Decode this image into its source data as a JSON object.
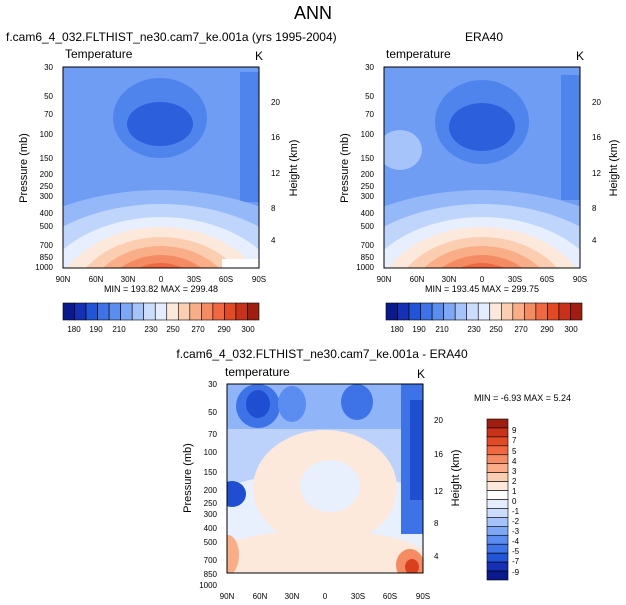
{
  "figure_title": "ANN",
  "colors": {
    "cool": [
      "#0a1a8c",
      "#1530b5",
      "#2255d6",
      "#3d73e6",
      "#5b8cf0",
      "#7ea8f6",
      "#a6c4fa",
      "#cbdcfc",
      "#e4edfd"
    ],
    "warm": [
      "#fde9dc",
      "#fbcdb1",
      "#f9ae88",
      "#f58b63",
      "#ef6841",
      "#e24a26",
      "#c8321a",
      "#9e1f10"
    ],
    "zero": "#ffffff"
  },
  "chart_data": [
    {
      "type": "contour",
      "panel_title": "f.cam6_4_032.FLTHIST_ne30.cam7_ke.001a (yrs 1995-2004)",
      "left_label": "Temperature",
      "right_label": "K",
      "ylabel": "Pressure (mb)",
      "ylabel_right": "Height (km)",
      "x_ticks": [
        "90N",
        "60N",
        "30N",
        "0",
        "30S",
        "60S",
        "90S"
      ],
      "y_ticks": [
        "30",
        "50",
        "70",
        "100",
        "150",
        "200",
        "250",
        "300",
        "400",
        "500",
        "700",
        "850",
        "1000"
      ],
      "height_ticks": [
        "20",
        "16",
        "12",
        "8",
        "4"
      ],
      "stats": "MIN = 193.82  MAX = 299.48",
      "min": 193.82,
      "max": 299.48,
      "colorbar": {
        "orientation": "horizontal",
        "labels": [
          "180",
          "190",
          "210",
          "230",
          "250",
          "270",
          "290",
          "300"
        ]
      }
    },
    {
      "type": "contour",
      "panel_title": "ERA40",
      "left_label": "temperature",
      "right_label": "K",
      "ylabel": "Pressure (mb)",
      "ylabel_right": "Height (km)",
      "x_ticks": [
        "90N",
        "60N",
        "30N",
        "0",
        "30S",
        "60S",
        "90S"
      ],
      "y_ticks": [
        "30",
        "50",
        "70",
        "100",
        "150",
        "200",
        "250",
        "300",
        "400",
        "500",
        "700",
        "850",
        "1000"
      ],
      "height_ticks": [
        "20",
        "16",
        "12",
        "8",
        "4"
      ],
      "stats": "MIN = 193.45  MAX = 299.75",
      "min": 193.45,
      "max": 299.75,
      "colorbar": {
        "orientation": "horizontal",
        "labels": [
          "180",
          "190",
          "210",
          "230",
          "250",
          "270",
          "290",
          "300"
        ]
      }
    },
    {
      "type": "contour",
      "panel_title": "f.cam6_4_032.FLTHIST_ne30.cam7_ke.001a - ERA40",
      "left_label": "temperature",
      "right_label": "K",
      "ylabel": "Pressure (mb)",
      "ylabel_right": "Height (km)",
      "x_ticks": [
        "90N",
        "60N",
        "30N",
        "0",
        "30S",
        "60S",
        "90S"
      ],
      "y_ticks": [
        "30",
        "50",
        "70",
        "100",
        "150",
        "200",
        "250",
        "300",
        "400",
        "500",
        "700",
        "850",
        "1000"
      ],
      "height_ticks": [
        "20",
        "16",
        "12",
        "8",
        "4"
      ],
      "stats": "MIN = -6.93  MAX =  5.24",
      "min": -6.93,
      "max": 5.24,
      "colorbar": {
        "orientation": "vertical",
        "labels": [
          "9",
          "7",
          "5",
          "4",
          "3",
          "2",
          "1",
          "0",
          "-1",
          "-2",
          "-3",
          "-4",
          "-5",
          "-7",
          "-9"
        ]
      }
    }
  ]
}
